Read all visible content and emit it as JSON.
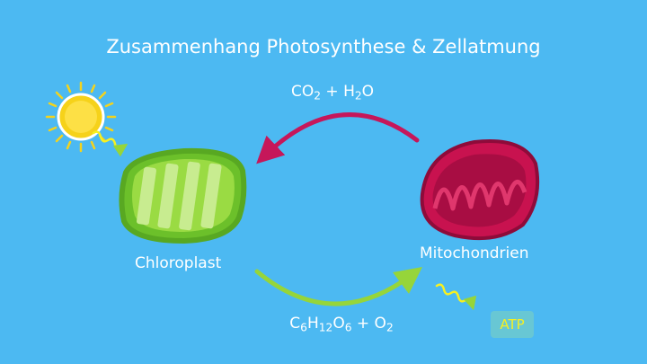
{
  "title": "Zusammenhang Photosynthese & Zellatmung",
  "top_arrow": {
    "formula_parts": [
      "CO",
      "2",
      " + H",
      "2",
      "O"
    ]
  },
  "bottom_arrow": {
    "formula_parts": [
      "C",
      "6",
      "H",
      "12",
      "O",
      "6",
      " +  O",
      "2"
    ]
  },
  "chloroplast": {
    "label": "Chloroplast"
  },
  "mitochondria": {
    "label": "Mitochondrien"
  },
  "atp": {
    "label": "ATP"
  },
  "colors": {
    "background": "#4cb9f2",
    "chloroplast_green": "#8ed43a",
    "mitochondria_red": "#c8124f",
    "arrow_top": "#c6175a",
    "arrow_bottom": "#96d53a",
    "sun": "#f4d31c",
    "atp_text": "#f6f021"
  },
  "icons": [
    "sun-icon",
    "sunlight-ray-icon",
    "energy-ray-icon"
  ]
}
